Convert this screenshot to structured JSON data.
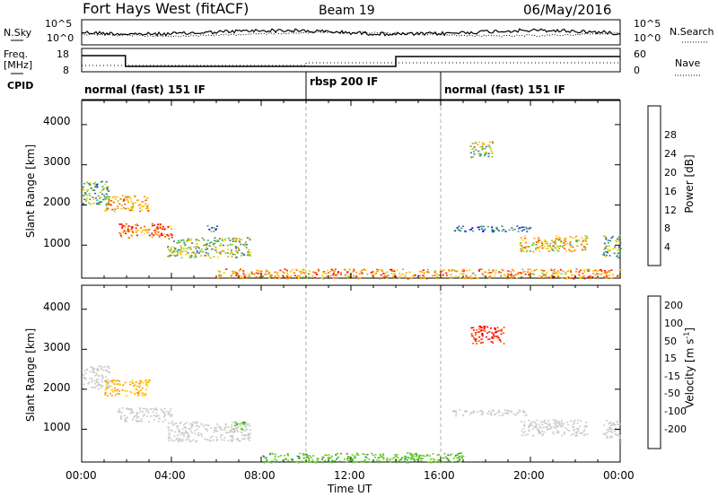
{
  "header": {
    "title": "Fort Hays West (fitACF)",
    "beam": "Beam 19",
    "date": "06/May/2016"
  },
  "strip_nsky": {
    "left_label": "N.Sky",
    "left_ticks": [
      "10^5",
      "10^0"
    ],
    "right_label": "N.Search",
    "right_ticks": [
      "10^5",
      "10^0"
    ]
  },
  "strip_freq": {
    "left_label_1": "Freq.",
    "left_label_2": "[MHz]",
    "left_ticks": [
      "18",
      "8"
    ],
    "right_label": "Nave",
    "right_ticks": [
      "60",
      "0"
    ]
  },
  "cpid": {
    "label": "CPID",
    "segments": [
      {
        "start_h": 0,
        "end_h": 10,
        "name": "normal (fast) 151 IF"
      },
      {
        "start_h": 10,
        "end_h": 16,
        "name": "rbsp 200 IF"
      },
      {
        "start_h": 16,
        "end_h": 24,
        "name": "normal (fast) 151 IF"
      }
    ]
  },
  "x_axis": {
    "label": "Time UT",
    "ticks": [
      "00:00",
      "04:00",
      "08:00",
      "12:00",
      "16:00",
      "20:00",
      "00:00"
    ]
  },
  "colors": {
    "power_scale": [
      "#0000ff",
      "#2050c8",
      "#3a7a8a",
      "#44aa55",
      "#99cc22",
      "#ffcc00",
      "#ff9900",
      "#ff5500",
      "#ff0000"
    ],
    "velocity_scale": [
      "#ff0000",
      "#ff5500",
      "#ff9900",
      "#ffcc00",
      "#cccccc",
      "#cccccc",
      "#66cc22",
      "#2b8a4a",
      "#3a5ab0",
      "#1a2aff"
    ]
  },
  "chart_data": [
    {
      "type": "heatmap",
      "panel": "power",
      "ylabel": "Slant Range [km]",
      "xlabel": "",
      "yticks": [
        "1000",
        "2000",
        "3000",
        "4000"
      ],
      "xlim": [
        0,
        24
      ],
      "ylim": [
        180,
        4600
      ],
      "colorbar_label": "Power [dB]",
      "colorbar_ticks": [
        "4",
        "8",
        "12",
        "16",
        "20",
        "24",
        "28"
      ],
      "colorbar_range": [
        0,
        30
      ],
      "features": [
        {
          "t0": 0.0,
          "t1": 1.2,
          "r0": 2000,
          "r1": 2600,
          "value": 12
        },
        {
          "t0": 1.0,
          "t1": 3.0,
          "r0": 1850,
          "r1": 2250,
          "value": 20
        },
        {
          "t0": 1.6,
          "t1": 4.0,
          "r0": 1200,
          "r1": 1550,
          "value": 24
        },
        {
          "t0": 3.8,
          "t1": 7.5,
          "r0": 700,
          "r1": 1200,
          "value": 14
        },
        {
          "t0": 5.5,
          "t1": 6.0,
          "r0": 1350,
          "r1": 1500,
          "value": 8
        },
        {
          "t0": 17.3,
          "t1": 18.3,
          "r0": 3200,
          "r1": 3600,
          "value": 14
        },
        {
          "t0": 16.5,
          "t1": 20.0,
          "r0": 1350,
          "r1": 1500,
          "value": 6
        },
        {
          "t0": 19.5,
          "t1": 22.5,
          "r0": 850,
          "r1": 1250,
          "value": 18
        },
        {
          "t0": 23.2,
          "t1": 24.0,
          "r0": 700,
          "r1": 1250,
          "value": 12
        },
        {
          "t0": 6.0,
          "t1": 24.0,
          "r0": 180,
          "r1": 420,
          "value": 22
        }
      ]
    },
    {
      "type": "heatmap",
      "panel": "velocity",
      "ylabel": "Slant Range [km]",
      "xlabel": "Time UT",
      "yticks": [
        "1000",
        "2000",
        "3000",
        "4000"
      ],
      "xlim": [
        0,
        24
      ],
      "ylim": [
        180,
        4600
      ],
      "colorbar_label": "Velocity [m s^-1]",
      "colorbar_ticks": [
        "-200",
        "-100",
        "-50",
        "-15",
        "15",
        "50",
        "100",
        "200"
      ],
      "colorbar_range": [
        -250,
        250
      ],
      "features": [
        {
          "t0": 0.0,
          "t1": 1.2,
          "r0": 2000,
          "r1": 2600,
          "value": 0
        },
        {
          "t0": 1.0,
          "t1": 3.0,
          "r0": 1850,
          "r1": 2250,
          "value": -50
        },
        {
          "t0": 1.6,
          "t1": 4.0,
          "r0": 1200,
          "r1": 1550,
          "value": 0
        },
        {
          "t0": 3.8,
          "t1": 7.5,
          "r0": 700,
          "r1": 1200,
          "value": 0
        },
        {
          "t0": 6.7,
          "t1": 7.3,
          "r0": 1000,
          "r1": 1200,
          "value": 40
        },
        {
          "t0": 17.3,
          "t1": 18.8,
          "r0": 3150,
          "r1": 3600,
          "value": -200
        },
        {
          "t0": 16.5,
          "t1": 20.0,
          "r0": 1350,
          "r1": 1500,
          "value": 0
        },
        {
          "t0": 19.5,
          "t1": 22.5,
          "r0": 850,
          "r1": 1250,
          "value": 0
        },
        {
          "t0": 23.2,
          "t1": 24.0,
          "r0": 700,
          "r1": 1250,
          "value": 0
        },
        {
          "t0": 8.0,
          "t1": 17.0,
          "r0": 180,
          "r1": 420,
          "value": 40
        }
      ]
    }
  ]
}
